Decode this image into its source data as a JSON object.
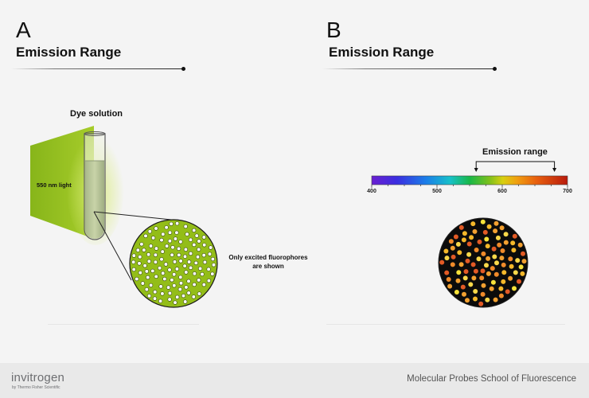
{
  "panel_a": {
    "letter": "A",
    "title": "Emission Range",
    "tube_label": "Dye solution",
    "light_label": "550 nm light",
    "note_line1": "Only excited fluorophores",
    "note_line2": "are shown",
    "dot_count": 120,
    "colors": {
      "light": "#8fbf1a",
      "circle": "#93bd18",
      "dot": "#ffffff"
    }
  },
  "panel_b": {
    "letter": "B",
    "title": "Emission Range",
    "range_label": "Emission range",
    "spectrum_ticks": [
      "400",
      "500",
      "600",
      "700"
    ],
    "spectrum_range_nm": [
      400,
      700
    ],
    "emission_range_nm": [
      560,
      680
    ],
    "dot_count": 95,
    "colors": {
      "circle": "#0b0b0b",
      "dots": [
        "#f7e23a",
        "#f5b82a",
        "#f08a2a",
        "#e25a25",
        "#f8d84a",
        "#f2a030"
      ]
    }
  },
  "footer": {
    "brand": "invitrogen",
    "brand_sub": "by Thermo Fisher Scientific",
    "school": "Molecular Probes School of Fluorescence"
  }
}
